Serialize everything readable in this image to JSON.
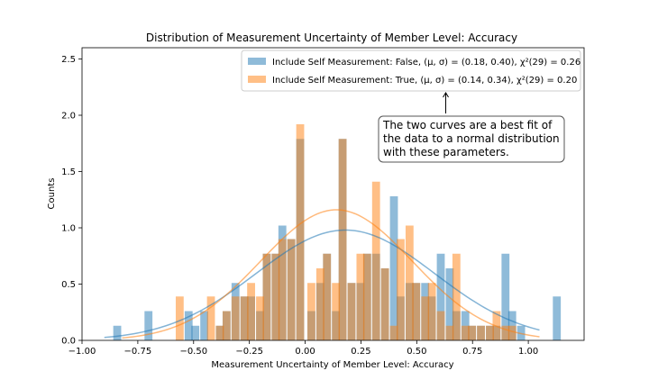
{
  "chart_data": {
    "type": "bar",
    "title": "Distribution of Measurement Uncertainty of Member Level: Accuracy",
    "xlabel": "Measurement Uncertainty of Member Level: Accuracy",
    "ylabel": "Counts",
    "xlim": [
      -1.0,
      1.25
    ],
    "ylim": [
      0,
      2.6
    ],
    "xticks": [
      -1.0,
      -0.75,
      -0.5,
      -0.25,
      0.0,
      0.25,
      0.5,
      0.75,
      1.0
    ],
    "xtick_labels": [
      "−1.00",
      "−0.75",
      "−0.50",
      "−0.25",
      "0.00",
      "0.25",
      "0.50",
      "0.75",
      "1.00"
    ],
    "yticks": [
      0.0,
      0.5,
      1.0,
      1.5,
      2.0,
      2.5
    ],
    "ytick_labels": [
      "0.0",
      "0.5",
      "1.0",
      "1.5",
      "2.0",
      "2.5"
    ],
    "bin_width": 0.0355,
    "colors": {
      "false": "#1f77b4",
      "true": "#ff7f0e"
    },
    "series": [
      {
        "name": "Include Self Measurement: False, (μ, σ) = (0.18, 0.40), χ²(29) = 0.26",
        "mu": 0.18,
        "sigma": 0.4,
        "amplitude": 0.98,
        "curve_x": [
          -0.9,
          1.05
        ],
        "bins": [
          [
            -0.86,
            0.13
          ],
          [
            -0.72,
            0.26
          ],
          [
            -0.54,
            0.26
          ],
          [
            -0.51,
            0.13
          ],
          [
            -0.47,
            0.26
          ],
          [
            -0.4,
            0.13
          ],
          [
            -0.37,
            0.26
          ],
          [
            -0.33,
            0.51
          ],
          [
            -0.29,
            0.39
          ],
          [
            -0.26,
            0.39
          ],
          [
            -0.22,
            0.26
          ],
          [
            -0.19,
            0.77
          ],
          [
            -0.15,
            0.77
          ],
          [
            -0.12,
            1.02
          ],
          [
            -0.08,
            0.9
          ],
          [
            -0.04,
            1.79
          ],
          [
            0.01,
            0.26
          ],
          [
            0.05,
            0.51
          ],
          [
            0.08,
            0.77
          ],
          [
            0.12,
            0.26
          ],
          [
            0.15,
            1.79
          ],
          [
            0.19,
            0.51
          ],
          [
            0.23,
            0.51
          ],
          [
            0.26,
            0.77
          ],
          [
            0.3,
            0.77
          ],
          [
            0.34,
            0.64
          ],
          [
            0.38,
            1.28
          ],
          [
            0.41,
            0.39
          ],
          [
            0.45,
            0.51
          ],
          [
            0.48,
            0.51
          ],
          [
            0.52,
            0.51
          ],
          [
            0.55,
            0.39
          ],
          [
            0.59,
            0.77
          ],
          [
            0.63,
            0.64
          ],
          [
            0.66,
            0.26
          ],
          [
            0.7,
            0.26
          ],
          [
            0.73,
            0.13
          ],
          [
            0.77,
            0.13
          ],
          [
            0.81,
            0.13
          ],
          [
            0.84,
            0.13
          ],
          [
            0.88,
            0.77
          ],
          [
            0.91,
            0.26
          ],
          [
            0.95,
            0.13
          ],
          [
            1.11,
            0.39
          ]
        ]
      },
      {
        "name": "Include Self Measurement: True, (μ, σ) = (0.14, 0.34), χ²(29) = 0.20",
        "mu": 0.14,
        "sigma": 0.34,
        "amplitude": 1.16,
        "curve_x": [
          -0.82,
          1.05
        ],
        "bins": [
          [
            -0.58,
            0.39
          ],
          [
            -0.44,
            0.39
          ],
          [
            -0.4,
            0.13
          ],
          [
            -0.37,
            0.26
          ],
          [
            -0.33,
            0.39
          ],
          [
            -0.29,
            0.39
          ],
          [
            -0.26,
            0.51
          ],
          [
            -0.22,
            0.39
          ],
          [
            -0.19,
            0.77
          ],
          [
            -0.15,
            0.77
          ],
          [
            -0.12,
            0.9
          ],
          [
            -0.08,
            0.9
          ],
          [
            -0.04,
            1.92
          ],
          [
            0.01,
            0.51
          ],
          [
            0.05,
            0.64
          ],
          [
            0.08,
            0.77
          ],
          [
            0.12,
            0.51
          ],
          [
            0.15,
            1.79
          ],
          [
            0.19,
            0.51
          ],
          [
            0.23,
            0.77
          ],
          [
            0.26,
            0.77
          ],
          [
            0.3,
            1.41
          ],
          [
            0.34,
            0.64
          ],
          [
            0.38,
            0.13
          ],
          [
            0.41,
            0.9
          ],
          [
            0.45,
            1.02
          ],
          [
            0.48,
            0.51
          ],
          [
            0.52,
            0.39
          ],
          [
            0.55,
            0.51
          ],
          [
            0.59,
            0.26
          ],
          [
            0.63,
            0.13
          ],
          [
            0.66,
            0.77
          ],
          [
            0.7,
            0.13
          ],
          [
            0.73,
            0.13
          ],
          [
            0.77,
            0.13
          ],
          [
            0.81,
            0.13
          ],
          [
            0.84,
            0.26
          ],
          [
            0.88,
            0.13
          ],
          [
            0.91,
            0.13
          ]
        ]
      }
    ],
    "legend": {
      "placement": "top-right",
      "entries": [
        "Include Self Measurement: False, (μ, σ) = (0.18, 0.40), χ²(29) = 0.26",
        "Include Self Measurement: True, (μ, σ) = (0.14, 0.34), χ²(29) = 0.20"
      ]
    },
    "annotation": {
      "lines": [
        "The two curves are a best fit of",
        "the data to a normal distribution",
        "with these parameters."
      ],
      "arrow_target": [
        0.63,
        2.2
      ]
    }
  }
}
